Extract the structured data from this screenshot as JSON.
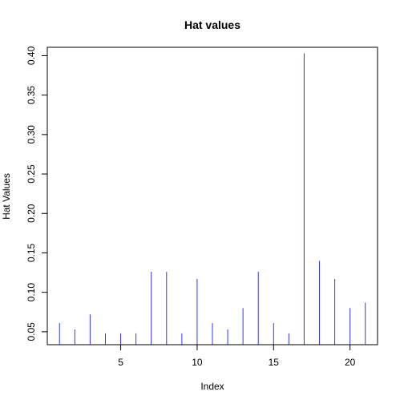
{
  "chart_data": {
    "type": "bar",
    "title": "Hat values",
    "xlabel": "Index",
    "ylabel": "Hat Values",
    "xlim": [
      0.2,
      21.8
    ],
    "ylim": [
      0.0336,
      0.4106
    ],
    "x_ticks": [
      5,
      10,
      15,
      20
    ],
    "y_ticks": [
      0.05,
      0.1,
      0.15,
      0.2,
      0.25,
      0.3,
      0.35,
      0.4
    ],
    "y_tick_labels": [
      "0.05",
      "0.10",
      "0.15",
      "0.20",
      "0.25",
      "0.30",
      "0.35",
      "0.40"
    ],
    "grid": false,
    "series": [
      {
        "color": "#3333ff",
        "x": [
          1,
          2,
          3,
          4,
          5,
          6,
          7,
          8,
          9,
          10,
          11,
          12,
          13,
          14,
          15,
          16,
          17,
          18,
          19,
          20,
          21
        ],
        "values": [
          0.061,
          0.053,
          0.072,
          0.048,
          0.048,
          0.048,
          0.126,
          0.126,
          0.048,
          0.117,
          0.061,
          0.053,
          0.08,
          0.126,
          0.061,
          0.048,
          0.403,
          0.14,
          0.117,
          0.08,
          0.087
        ]
      }
    ]
  }
}
